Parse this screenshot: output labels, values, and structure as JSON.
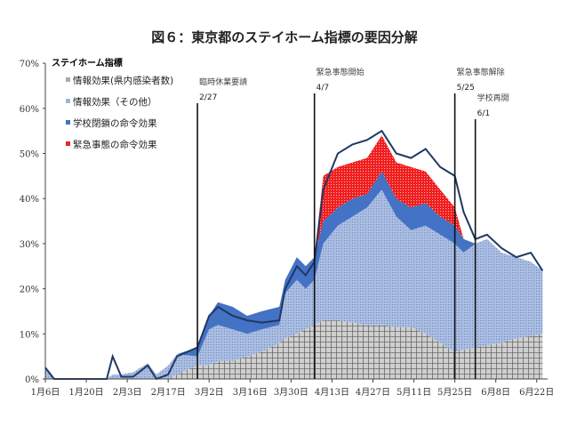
{
  "chart_data": {
    "type": "area",
    "title": "図６：東京都のステイホーム指標の要因分解",
    "legend_title": "ステイホーム指標",
    "legend_placement": "top-left",
    "ylim": [
      0,
      70
    ],
    "yticks": [
      "0%",
      "10%",
      "20%",
      "30%",
      "40%",
      "50%",
      "60%",
      "70%"
    ],
    "xticks": [
      "1月6日",
      "1月20日",
      "2月3日",
      "2月17日",
      "3月2日",
      "3月16日",
      "3月30日",
      "4月13日",
      "4月27日",
      "5月11日",
      "5月25日",
      "6月8日",
      "6月22日"
    ],
    "x": [
      "1/6",
      "1/9",
      "1/20",
      "1/27",
      "1/29",
      "2/1",
      "2/5",
      "2/10",
      "2/13",
      "2/17",
      "2/20",
      "2/27",
      "3/2",
      "3/5",
      "3/10",
      "3/15",
      "3/20",
      "3/26",
      "3/28",
      "4/1",
      "4/4",
      "4/7",
      "4/10",
      "4/15",
      "4/20",
      "4/25",
      "4/30",
      "5/5",
      "5/10",
      "5/15",
      "5/20",
      "5/25",
      "5/28",
      "6/1",
      "6/5",
      "6/10",
      "6/15",
      "6/20",
      "6/24"
    ],
    "series": [
      {
        "name": "情報効果(県内感染者数)",
        "color": "#c8c8c8",
        "values": [
          0,
          0,
          0,
          0,
          0,
          0,
          0,
          0,
          0,
          0,
          1,
          3,
          3,
          4,
          4,
          5,
          6,
          8,
          9,
          10,
          11,
          12,
          13,
          13,
          12.5,
          12,
          12,
          11.5,
          11.5,
          10,
          8,
          6,
          6.5,
          7,
          7.5,
          8,
          9,
          9.5,
          10
        ]
      },
      {
        "name": "情報効果（その他）",
        "color": "#9fb4dc",
        "values": [
          2.5,
          0,
          0,
          0,
          1,
          1,
          1.5,
          3.5,
          1,
          3,
          4.5,
          2,
          8,
          8,
          7,
          5,
          5,
          4,
          10,
          12,
          9,
          10,
          17,
          21,
          23.5,
          26,
          30,
          24.5,
          21.5,
          24,
          24,
          24,
          21.5,
          23,
          23.5,
          20,
          18,
          16.5,
          14
        ]
      },
      {
        "name": "学校閉鎖の命令効果",
        "color": "#4472c4",
        "values": [
          0,
          0,
          0,
          0,
          0,
          0,
          0,
          0,
          0,
          0,
          0,
          2,
          3,
          5,
          5,
          4,
          4,
          4,
          3,
          5,
          5,
          5,
          5,
          4,
          4,
          3,
          4,
          4,
          5,
          5,
          4,
          4,
          3,
          0,
          0,
          0,
          0,
          0,
          0
        ]
      },
      {
        "name": "緊急事態の命令効果",
        "color": "#ee2222",
        "values": [
          0,
          0,
          0,
          0,
          0,
          0,
          0,
          0,
          0,
          0,
          0,
          0,
          0,
          0,
          0,
          0,
          0,
          0,
          0,
          0,
          0,
          0,
          10,
          9,
          8,
          8,
          8,
          8,
          9,
          7,
          6,
          4,
          0,
          0,
          0,
          0,
          0,
          0,
          0
        ]
      }
    ],
    "total_line": {
      "name": "ステイホーム指標",
      "color": "#1f3864",
      "values": [
        2.5,
        0,
        0,
        0,
        5,
        0.5,
        0.5,
        3,
        0,
        1,
        5,
        7,
        14,
        16,
        14,
        13,
        12.5,
        13,
        20,
        25,
        23,
        26,
        42,
        50,
        52,
        53,
        55,
        50,
        49,
        51,
        47,
        45,
        37,
        31,
        32,
        29,
        27,
        28,
        24
      ]
    },
    "annotations": [
      {
        "date": "2/27",
        "label": "臨時休業要請",
        "sub": "2/27"
      },
      {
        "date": "4/7",
        "label": "緊急事態開始",
        "sub": "4/7"
      },
      {
        "date": "5/25",
        "label": "緊急事態解除",
        "sub": "5/25"
      },
      {
        "date": "6/1",
        "label": "学校再開",
        "sub": "6/1"
      }
    ]
  }
}
